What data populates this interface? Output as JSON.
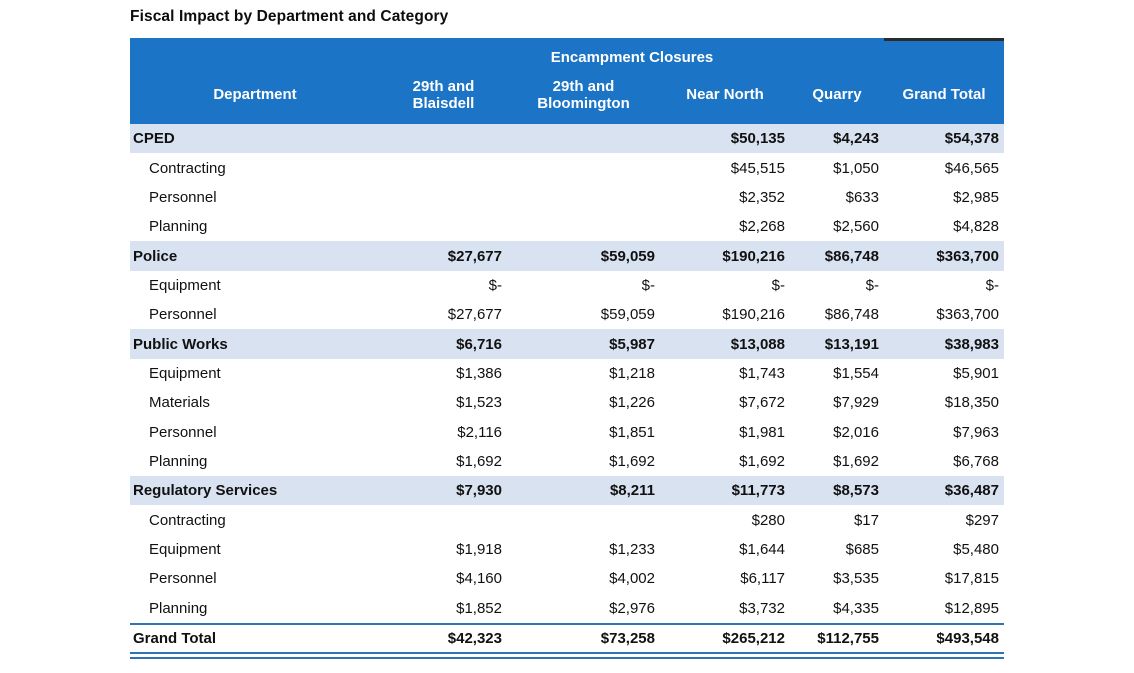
{
  "title": "Fiscal Impact by Department and Category",
  "table": {
    "group_header": "Encampment Closures",
    "columns": [
      "Department",
      "29th and Blaisdell",
      "29th and Bloomington",
      "Near North",
      "Quarry",
      "Grand Total"
    ],
    "rows": [
      {
        "label": "CPED",
        "type": "department",
        "values": [
          "",
          "",
          "$50,135",
          "$4,243",
          "$54,378"
        ]
      },
      {
        "label": "Contracting",
        "type": "item",
        "values": [
          "",
          "",
          "$45,515",
          "$1,050",
          "$46,565"
        ]
      },
      {
        "label": "Personnel",
        "type": "item",
        "values": [
          "",
          "",
          "$2,352",
          "$633",
          "$2,985"
        ]
      },
      {
        "label": "Planning",
        "type": "item",
        "values": [
          "",
          "",
          "$2,268",
          "$2,560",
          "$4,828"
        ]
      },
      {
        "label": "Police",
        "type": "department",
        "values": [
          "$27,677",
          "$59,059",
          "$190,216",
          "$86,748",
          "$363,700"
        ]
      },
      {
        "label": "Equipment",
        "type": "item",
        "values": [
          "$-",
          "$-",
          "$-",
          "$-",
          "$-"
        ]
      },
      {
        "label": "Personnel",
        "type": "item",
        "values": [
          "$27,677",
          "$59,059",
          "$190,216",
          "$86,748",
          "$363,700"
        ]
      },
      {
        "label": "Public Works",
        "type": "department",
        "values": [
          "$6,716",
          "$5,987",
          "$13,088",
          "$13,191",
          "$38,983"
        ]
      },
      {
        "label": "Equipment",
        "type": "item",
        "values": [
          "$1,386",
          "$1,218",
          "$1,743",
          "$1,554",
          "$5,901"
        ]
      },
      {
        "label": "Materials",
        "type": "item",
        "values": [
          "$1,523",
          "$1,226",
          "$7,672",
          "$7,929",
          "$18,350"
        ]
      },
      {
        "label": "Personnel",
        "type": "item",
        "values": [
          "$2,116",
          "$1,851",
          "$1,981",
          "$2,016",
          "$7,963"
        ]
      },
      {
        "label": "Planning",
        "type": "item",
        "values": [
          "$1,692",
          "$1,692",
          "$1,692",
          "$1,692",
          "$6,768"
        ]
      },
      {
        "label": "Regulatory Services",
        "type": "department",
        "values": [
          "$7,930",
          "$8,211",
          "$11,773",
          "$8,573",
          "$36,487"
        ]
      },
      {
        "label": "Contracting",
        "type": "item",
        "values": [
          "",
          "",
          "$280",
          "$17",
          "$297"
        ]
      },
      {
        "label": "Equipment",
        "type": "item",
        "values": [
          "$1,918",
          "$1,233",
          "$1,644",
          "$685",
          "$5,480"
        ]
      },
      {
        "label": "Personnel",
        "type": "item",
        "values": [
          "$4,160",
          "$4,002",
          "$6,117",
          "$3,535",
          "$17,815"
        ]
      },
      {
        "label": "Planning",
        "type": "item",
        "values": [
          "$1,852",
          "$2,976",
          "$3,732",
          "$4,335",
          "$12,895"
        ]
      },
      {
        "label": "Grand Total",
        "type": "grand_total",
        "values": [
          "$42,323",
          "$73,258",
          "$265,212",
          "$112,755",
          "$493,548"
        ]
      }
    ]
  },
  "colors": {
    "header_blue": "#1B74C6",
    "band_blue": "#D9E2F0",
    "rule_blue": "#2E74B5",
    "notch_dark": "#2B2B2B"
  }
}
